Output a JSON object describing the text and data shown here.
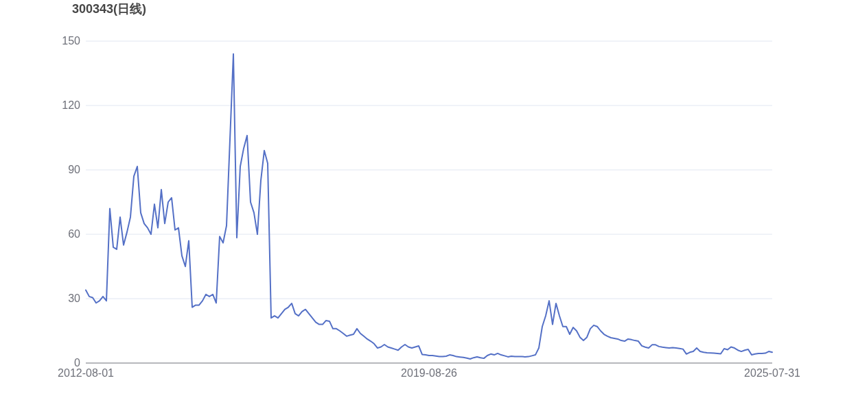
{
  "chart_data": {
    "type": "line",
    "title": "300343(日线)",
    "color": "#5470c6",
    "ylim": [
      0,
      150
    ],
    "yticks": [
      0,
      30,
      60,
      90,
      120,
      150
    ],
    "grid": "y",
    "categories": [
      "2012-08-01",
      null,
      null,
      null,
      null,
      null,
      null,
      null,
      null,
      null,
      null,
      null,
      null,
      null,
      null,
      null,
      null,
      null,
      null,
      null,
      null,
      null,
      null,
      null,
      null,
      null,
      null,
      null,
      null,
      null,
      null,
      null,
      null,
      null,
      null,
      null,
      null,
      null,
      null,
      null,
      null,
      null,
      null,
      null,
      null,
      null,
      null,
      null,
      null,
      null,
      null,
      null,
      null,
      null,
      null,
      null,
      null,
      null,
      null,
      null,
      null,
      null,
      null,
      null,
      null,
      null,
      null,
      null,
      null,
      null,
      null,
      null,
      null,
      null,
      null,
      null,
      null,
      null,
      null,
      null,
      null,
      null,
      null,
      null,
      null,
      null,
      null,
      null,
      null,
      null,
      null,
      null,
      null,
      null,
      null,
      null,
      null,
      null,
      null,
      null,
      "2019-08-26",
      null,
      null,
      null,
      null,
      null,
      null,
      null,
      null,
      null,
      null,
      null,
      null,
      null,
      null,
      null,
      null,
      null,
      null,
      null,
      null,
      null,
      null,
      null,
      null,
      null,
      null,
      null,
      null,
      null,
      null,
      null,
      null,
      null,
      null,
      null,
      null,
      null,
      null,
      null,
      null,
      null,
      null,
      null,
      null,
      null,
      null,
      null,
      null,
      null,
      null,
      null,
      null,
      null,
      null,
      null,
      null,
      null,
      null,
      null,
      null,
      null,
      null,
      null,
      null,
      null,
      null,
      null,
      null,
      null,
      null,
      null,
      null,
      null,
      null,
      null,
      null,
      null,
      null,
      null,
      null,
      null,
      null,
      null,
      null,
      null,
      null,
      null,
      null,
      null,
      null,
      null,
      null,
      null,
      null,
      null,
      null,
      null,
      null,
      null,
      "2025-07-31"
    ],
    "values": [
      34,
      31,
      30.5,
      28,
      29,
      31,
      29,
      72,
      54,
      53,
      68,
      55,
      61,
      68,
      87,
      91.6,
      70,
      65,
      63,
      60,
      74,
      63,
      80.8,
      65,
      75,
      77,
      62,
      63,
      50,
      45,
      57,
      26,
      27,
      27,
      29,
      32,
      31,
      32,
      28,
      59,
      56,
      64,
      104,
      144,
      58.4,
      91.6,
      100,
      106,
      75,
      70,
      60,
      85,
      99,
      93,
      21,
      22,
      21,
      23,
      25,
      26,
      27.8,
      23,
      22,
      24,
      25,
      23,
      21,
      19,
      18,
      18,
      19.8,
      19.5,
      16,
      16,
      15,
      13.8,
      12.5,
      13,
      13.4,
      16,
      13.8,
      12.5,
      11.2,
      10.2,
      9,
      7,
      7.5,
      8.6,
      7.5,
      7,
      6.5,
      6,
      7.5,
      8.6,
      7.5,
      7,
      7.5,
      8,
      4,
      3.8,
      3.5,
      3.5,
      3.3,
      3,
      3,
      3.2,
      3.8,
      3.5,
      3,
      2.8,
      2.6,
      2.3,
      1.9,
      2.5,
      2.9,
      2.5,
      2.2,
      3.5,
      4.2,
      3.8,
      4.5,
      3.8,
      3.4,
      2.9,
      3.2,
      3,
      3,
      3,
      2.9,
      3,
      3.4,
      3.8,
      7,
      17,
      22,
      29,
      18,
      27.8,
      22,
      17,
      17,
      13.4,
      16.6,
      15,
      12,
      10.5,
      12,
      16,
      17.6,
      17,
      15,
      13.4,
      12.5,
      11.8,
      11.5,
      11.2,
      10.5,
      10.2,
      11.2,
      10.9,
      10.5,
      10.2,
      8,
      7.4,
      7,
      8.5,
      8.5,
      7.7,
      7.4,
      7.2,
      7,
      7.2,
      7,
      6.8,
      6.5,
      4.2,
      5,
      5.4,
      7,
      5.4,
      5,
      4.8,
      4.7,
      4.6,
      4.5,
      4.3,
      6.7,
      6.2,
      7.5,
      7,
      6,
      5.4,
      6,
      6.4,
      3.8,
      4.2,
      4.5,
      4.5,
      4.6,
      5.4,
      5
    ]
  }
}
